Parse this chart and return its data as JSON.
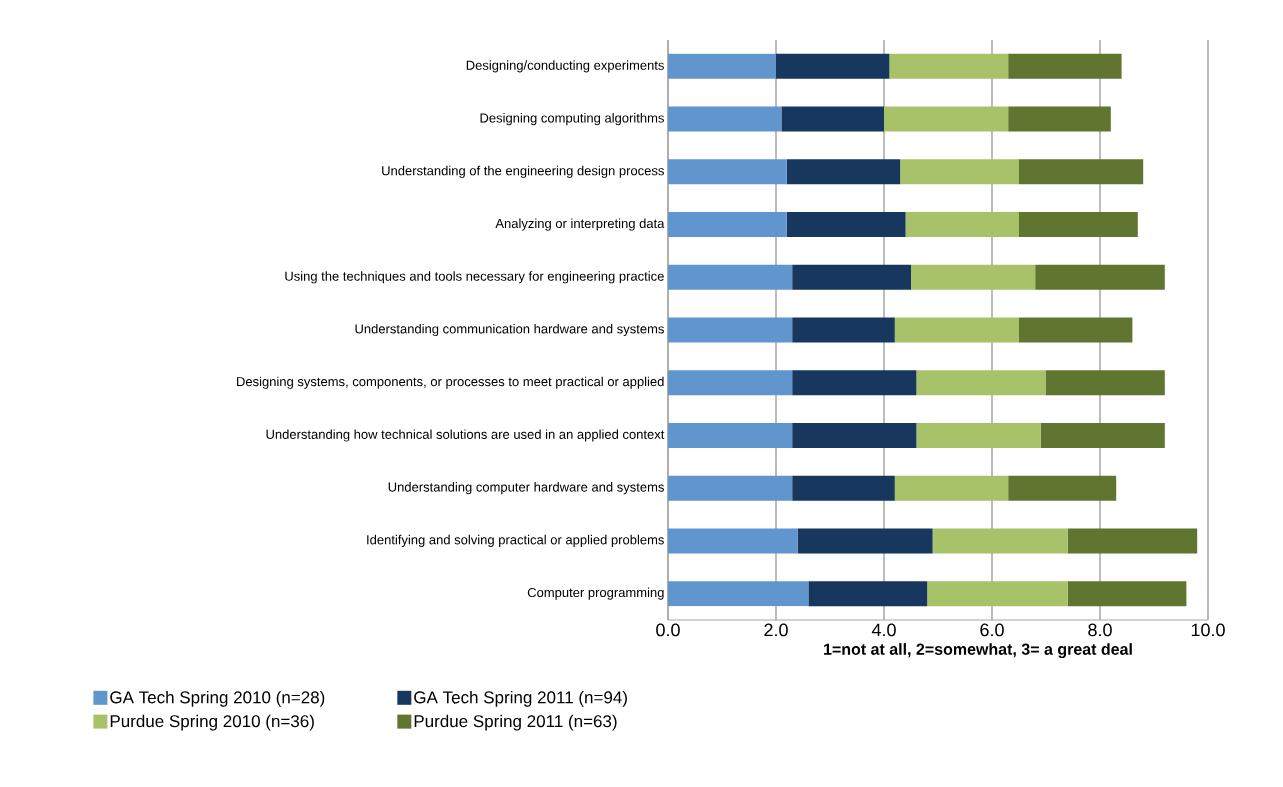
{
  "chart_data": {
    "type": "bar",
    "orientation": "horizontal",
    "stacked": true,
    "xlabel": "1=not at all, 2=somewhat, 3= a great deal",
    "categories": [
      "Designing/conducting experiments",
      "Designing computing algorithms",
      "Understanding of the engineering design process",
      "Analyzing or interpreting data",
      "Using the techniques and tools necessary for engineering practice",
      "Understanding communication hardware and systems",
      "Designing systems, components, or processes to meet practical or applied",
      "Understanding how technical solutions are used in an applied context",
      "Understanding computer hardware and systems",
      "Identifying and solving practical or applied problems",
      "Computer programming"
    ],
    "series": [
      {
        "name": "GA Tech Spring 2010 (n=28)",
        "color": "#6096cd",
        "values": [
          2.0,
          2.1,
          2.2,
          2.2,
          2.3,
          2.3,
          2.3,
          2.3,
          2.3,
          2.4,
          2.6
        ]
      },
      {
        "name": "GA Tech Spring 2011 (n=94)",
        "color": "#17375e",
        "values": [
          2.1,
          1.9,
          2.1,
          2.2,
          2.2,
          1.9,
          2.3,
          2.3,
          1.9,
          2.5,
          2.2
        ]
      },
      {
        "name": "Purdue Spring 2010 (n=36)",
        "color": "#a8c26a",
        "values": [
          2.2,
          2.3,
          2.2,
          2.1,
          2.3,
          2.3,
          2.4,
          2.3,
          2.1,
          2.5,
          2.6
        ]
      },
      {
        "name": "Purdue Spring 2011 (n=63)",
        "color": "#5f7530",
        "values": [
          2.1,
          1.9,
          2.3,
          2.2,
          2.4,
          2.1,
          2.2,
          2.3,
          2.0,
          2.4,
          2.2
        ]
      }
    ],
    "xlim": [
      0,
      10
    ],
    "xticks": [
      {
        "value": 0,
        "label": "0.0"
      },
      {
        "value": 2,
        "label": "2.0"
      },
      {
        "value": 4,
        "label": "4.0"
      },
      {
        "value": 6,
        "label": "6.0"
      },
      {
        "value": 8,
        "label": "8.0"
      },
      {
        "value": 10,
        "label": "10.0"
      }
    ],
    "grid": "x",
    "legend": "bottom"
  }
}
